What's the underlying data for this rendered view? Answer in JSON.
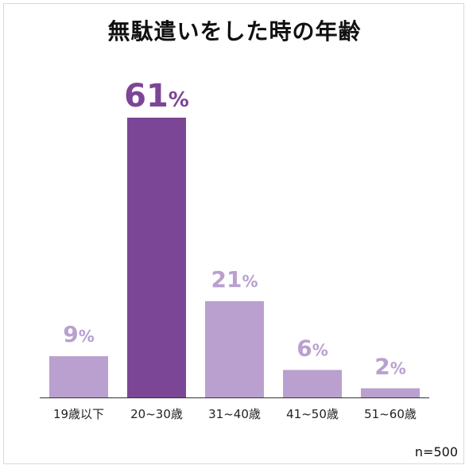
{
  "chart_data": {
    "type": "bar",
    "title": "無駄遣いをした時の年齢",
    "categories": [
      "19歳以下",
      "20~30歳",
      "31~40歳",
      "41~50歳",
      "51~60歳"
    ],
    "values": [
      9,
      61,
      21,
      6,
      2
    ],
    "value_labels": [
      "9",
      "61",
      "21",
      "6",
      "2"
    ],
    "unit": "%",
    "ylim": [
      0,
      70
    ],
    "grid": false,
    "legend": "none",
    "highlight_index": 1,
    "colors": {
      "bar": "#b9a0cf",
      "bar_highlight": "#7c4696",
      "label": "#b9a0cf",
      "label_highlight": "#7c4696"
    }
  },
  "note": "n=500"
}
